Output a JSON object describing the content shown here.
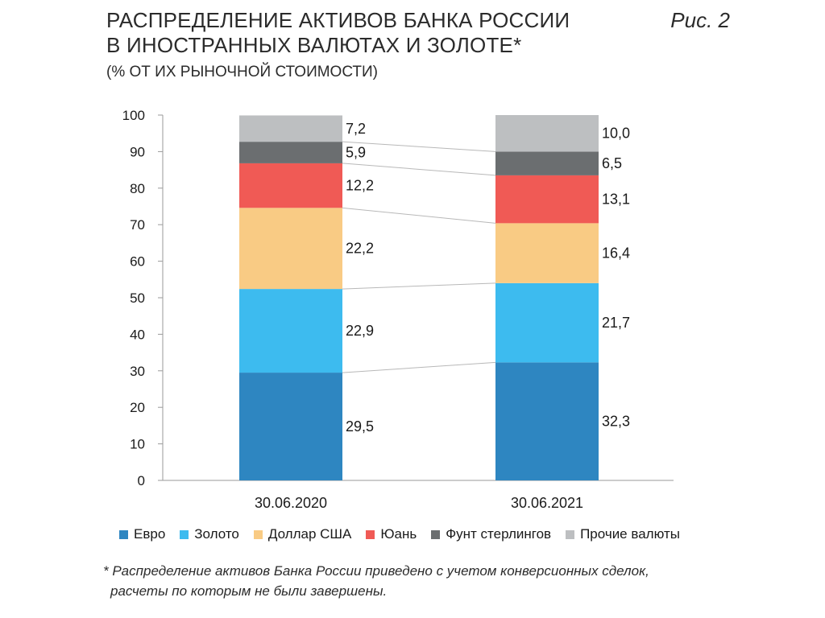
{
  "header": {
    "title_lines": [
      "РАСПРЕДЕЛЕНИЕ АКТИВОВ БАНКА РОССИИ",
      "В ИНОСТРАННЫХ ВАЛЮТАХ И ЗОЛОТЕ*"
    ],
    "subtitle": "(% ОТ ИХ РЫНОЧНОЙ СТОИМОСТИ)",
    "figure_label": "Рис. 2"
  },
  "chart_data": {
    "type": "bar",
    "stacked": true,
    "categories": [
      "30.06.2020",
      "30.06.2021"
    ],
    "ylim": [
      0,
      100
    ],
    "yticks": [
      0,
      10,
      20,
      30,
      40,
      50,
      60,
      70,
      80,
      90,
      100
    ],
    "grid": false,
    "legend_position": "bottom",
    "series": [
      {
        "name": "Евро",
        "color": "#2E86C1",
        "values": [
          29.5,
          32.3
        ],
        "labels": [
          "29,5",
          "32,3"
        ]
      },
      {
        "name": "Золото",
        "color": "#3DBBEF",
        "values": [
          22.9,
          21.7
        ],
        "labels": [
          "22,9",
          "21,7"
        ]
      },
      {
        "name": "Доллар США",
        "color": "#F9CB84",
        "values": [
          22.2,
          16.4
        ],
        "labels": [
          "22,2",
          "16,4"
        ]
      },
      {
        "name": "Юань",
        "color": "#F05A55",
        "values": [
          12.2,
          13.1
        ],
        "labels": [
          "12,2",
          "13,1"
        ]
      },
      {
        "name": "Фунт стерлингов",
        "color": "#6B6E70",
        "values": [
          5.9,
          6.5
        ],
        "labels": [
          "5,9",
          "6,5"
        ]
      },
      {
        "name": "Прочие валюты",
        "color": "#BDBFC1",
        "values": [
          7.2,
          10.0
        ],
        "labels": [
          "7,2",
          "10,0"
        ]
      }
    ]
  },
  "footnote_lines": [
    "* Распределение активов Банка России приведено с учетом конверсионных сделок,",
    "расчеты по которым не были завершены."
  ]
}
